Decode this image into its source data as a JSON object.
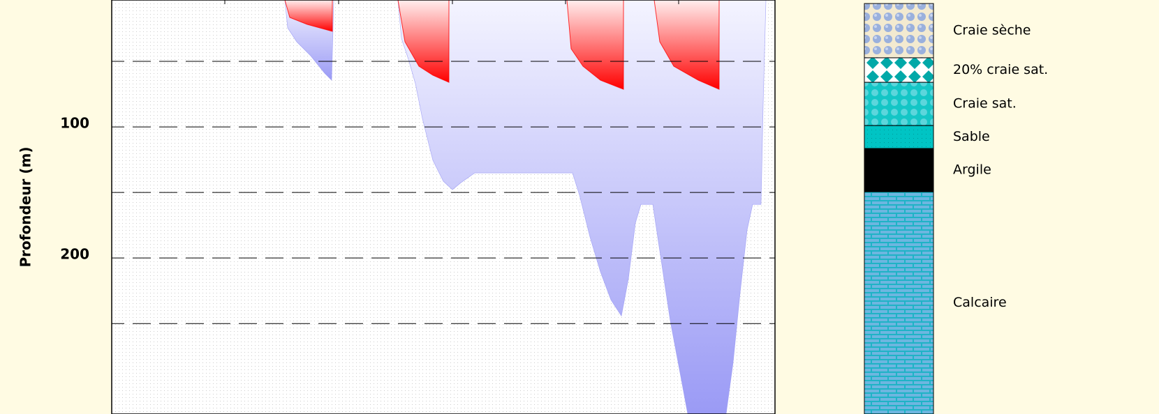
{
  "chart_data": {
    "type": "area",
    "y_label": "Profondeur (m)",
    "y_inverted": true,
    "ylim": [
      3.2,
      319
    ],
    "yticks": [
      100,
      200
    ],
    "ygrid": [
      50,
      100,
      150,
      200,
      250
    ],
    "xlim": [
      0,
      950
    ],
    "xticks": [
      162,
      325,
      488,
      650,
      812
    ],
    "series": [
      {
        "color": "#9a9af5",
        "x": [
          248,
          252,
          265,
          285,
          305,
          315,
          318
        ],
        "values": [
          3.2,
          24.5,
          35.1,
          45.8,
          59.1,
          64.4,
          3.2
        ]
      },
      {
        "color": "#9a9af5",
        "x": [
          410,
          415,
          425,
          435,
          445,
          460,
          475,
          488,
          500,
          520,
          660,
          670,
          685,
          700,
          715,
          730,
          740,
          750,
          758,
          775,
          785,
          800,
          815,
          825,
          880,
          890,
          900,
          910,
          918,
          930,
          933,
          937
        ],
        "values": [
          3.2,
          32.5,
          48.4,
          67.0,
          93.6,
          125.5,
          141.5,
          147.9,
          142.6,
          135.1,
          135.1,
          152.1,
          184.0,
          210.6,
          231.9,
          244.2,
          216.0,
          173.4,
          159.1,
          159.1,
          194.7,
          247.9,
          290.4,
          319,
          319,
          279.8,
          226.6,
          178.7,
          159.1,
          159.1,
          83.0,
          3.2
        ]
      },
      {
        "color": "#ff0000",
        "x": [
          248,
          255,
          280,
          316,
          316
        ],
        "values": [
          3.2,
          16.5,
          21.8,
          27.1,
          3.2
        ]
      },
      {
        "color": "#ff0000",
        "x": [
          410,
          420,
          440,
          460,
          483,
          483
        ],
        "values": [
          3.2,
          35.1,
          53.7,
          60.6,
          66.0,
          3.2
        ]
      },
      {
        "color": "#ff0000",
        "x": [
          652,
          658,
          675,
          700,
          733,
          733
        ],
        "values": [
          3.2,
          40.4,
          53.7,
          64.4,
          71.3,
          3.2
        ]
      },
      {
        "color": "#ff0000",
        "x": [
          777,
          785,
          805,
          840,
          870,
          870
        ],
        "values": [
          3.2,
          35.1,
          53.7,
          64.4,
          71.3,
          3.2
        ]
      }
    ],
    "strata_top": 5.9,
    "strata": [
      {
        "label": "Craie sèche",
        "bottom": 47.3,
        "pattern": "dry"
      },
      {
        "label": "20% craie sat.",
        "bottom": 66.0,
        "pattern": "diamond"
      },
      {
        "label": "Craie sat.",
        "bottom": 99.0,
        "pattern": "sat"
      },
      {
        "label": "Sable",
        "bottom": 116.5,
        "pattern": "sand"
      },
      {
        "label": "Argile",
        "bottom": 149.5,
        "pattern": "clay"
      },
      {
        "label": "Calcaire",
        "bottom": 319,
        "pattern": "brick"
      }
    ]
  }
}
